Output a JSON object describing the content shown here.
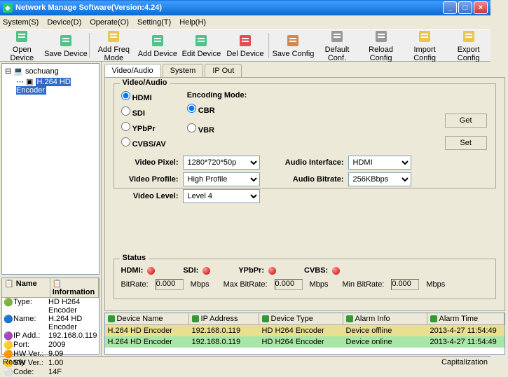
{
  "window": {
    "title": "Network Manage Software(Version:4.24)"
  },
  "menus": [
    "System(S)",
    "Device(D)",
    "Operate(O)",
    "Setting(T)",
    "Help(H)"
  ],
  "toolbar": [
    {
      "label": "Open Device",
      "color": "#3b7"
    },
    {
      "label": "Save Device",
      "color": "#3b7"
    },
    {
      "label": "Add Freq Mode",
      "color": "#e6c032"
    },
    {
      "label": "Add Device",
      "color": "#3b7"
    },
    {
      "label": "Edit Device",
      "color": "#3b7"
    },
    {
      "label": "Del Device",
      "color": "#d33"
    },
    {
      "label": "Save Config",
      "color": "#c73"
    },
    {
      "label": "Default Conf.",
      "color": "#888"
    },
    {
      "label": "Reload Config",
      "color": "#888"
    },
    {
      "label": "Import Config",
      "color": "#e6c032"
    },
    {
      "label": "Export Config",
      "color": "#e6c032"
    }
  ],
  "tree": {
    "root": "sochuang",
    "child": "H.264 HD Encoder"
  },
  "props": {
    "hdr": [
      "Name",
      "Information"
    ],
    "rows": [
      [
        "Type:",
        "HD H264 Encoder"
      ],
      [
        "Name:",
        "H.264 HD Encoder"
      ],
      [
        "IP Add.:",
        "192.168.0.119"
      ],
      [
        "Port:",
        "2009"
      ],
      [
        "HW Ver.:",
        "9.09"
      ],
      [
        "SW Ver.:",
        "1.00"
      ],
      [
        "Code:",
        "14F"
      ]
    ]
  },
  "tabs": [
    "Video/Audio",
    "System",
    "IP Out"
  ],
  "va": {
    "title": "Video/Audio",
    "source_opts": [
      "HDMI",
      "SDI",
      "YPbPr",
      "CVBS/AV"
    ],
    "source_sel": "HDMI",
    "enc_title": "Encoding Mode:",
    "enc_opts": [
      "CBR",
      "VBR"
    ],
    "enc_sel": "CBR",
    "video_pixel_lbl": "Video Pixel:",
    "video_pixel": "1280*720*50p",
    "video_profile_lbl": "Video Profile:",
    "video_profile": "High Profile",
    "video_level_lbl": "Video Level:",
    "video_level": "Level 4",
    "audio_if_lbl": "Audio Interface:",
    "audio_if": "HDMI",
    "audio_br_lbl": "Audio Bitrate:",
    "audio_br": "256KBbps",
    "get": "Get",
    "set": "Set"
  },
  "status": {
    "title": "Status",
    "items": [
      "HDMI:",
      "SDI:",
      "YPbPr:",
      "CVBS:"
    ],
    "br_lbl": "BitRate:",
    "br": "0.000",
    "unit": "Mbps",
    "max_lbl": "Max BitRate:",
    "max": "0.000",
    "min_lbl": "Min BitRate:",
    "min": "0.000"
  },
  "devlist": {
    "cols": [
      "Device Name",
      "IP Address",
      "Device Type",
      "Alarm Info",
      "Alarm Time"
    ],
    "rows": [
      {
        "cls": "offline",
        "cells": [
          "H.264 HD Encoder",
          "192.168.0.119",
          "HD H264 Encoder",
          "Device offline",
          "2013-4-27 11:54:49"
        ]
      },
      {
        "cls": "online",
        "cells": [
          "H.264 HD Encoder",
          "192.168.0.119",
          "HD H264 Encoder",
          "Device online",
          "2013-4-27 11:54:49"
        ]
      }
    ]
  },
  "statusbar": {
    "left": "Ready",
    "right": "Capitalization"
  }
}
